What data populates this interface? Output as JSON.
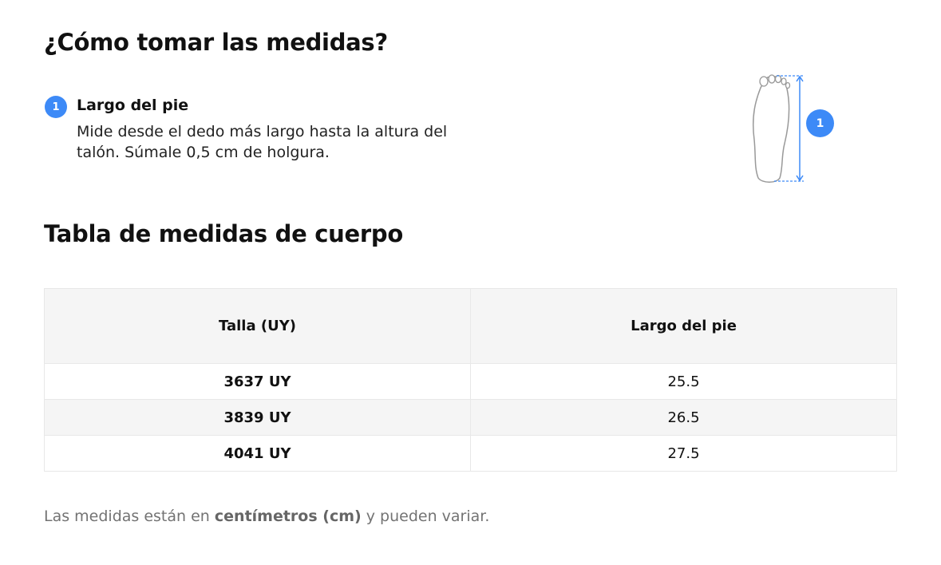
{
  "header": {
    "title": "¿Cómo tomar las medidas?"
  },
  "steps": [
    {
      "number": 1,
      "title": "Largo del pie",
      "text": "Mide desde el dedo más largo hasta la altura del talón. Súmale 0,5 cm de holgura."
    }
  ],
  "diagram": {
    "marker": 1
  },
  "table": {
    "title": "Tabla de medidas de cuerpo",
    "columns": [
      "Talla (UY)",
      "Largo del pie"
    ],
    "rows": [
      [
        "3637 UY",
        25.5
      ],
      [
        "3839 UY",
        26.5
      ],
      [
        "4041 UY",
        27.5
      ]
    ]
  },
  "footnote": {
    "before": "Las medidas están en ",
    "bold": "centímetros (cm)",
    "after": " y pueden variar."
  }
}
